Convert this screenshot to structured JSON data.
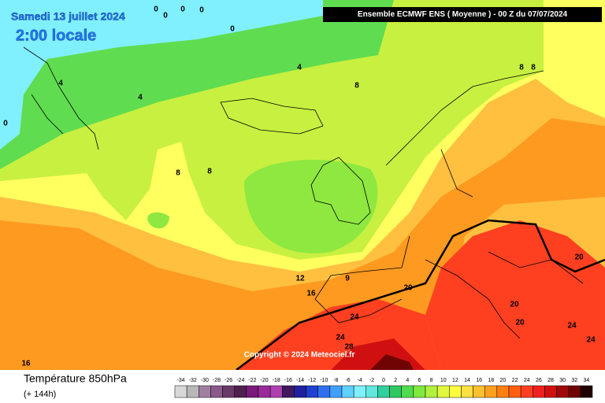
{
  "header": {
    "date": "Samedi 13 juillet 2024",
    "time": "2:00 locale",
    "model": "Ensemble ECMWF ENS  ( Moyenne )  -  00 Z du 07/07/2024"
  },
  "map": {
    "contour_labels": [
      0,
      0,
      0,
      0,
      0,
      0,
      4,
      4,
      4,
      8,
      8,
      8,
      8,
      8,
      12,
      9,
      16,
      20,
      20,
      20,
      20,
      24,
      24,
      28,
      24,
      24,
      16
    ],
    "copyright": "Copyright © 2024 Meteociel.fr"
  },
  "footer": {
    "parameter": "Température 850hPa",
    "lead": "(+ 144h)"
  },
  "colorbar": {
    "ticks": [
      -34,
      -32,
      -30,
      -28,
      -26,
      -24,
      -22,
      -20,
      -18,
      -16,
      -14,
      -12,
      -10,
      -8,
      -6,
      -4,
      -2,
      0,
      2,
      4,
      6,
      8,
      10,
      12,
      14,
      16,
      18,
      20,
      22,
      24,
      26,
      28,
      30,
      32,
      34
    ],
    "colors": [
      "#d8d8d8",
      "#b8b8b8",
      "#a080a0",
      "#8a5a8a",
      "#6a3a6a",
      "#502050",
      "#7a1a7a",
      "#9a2a9a",
      "#b040b0",
      "#401860",
      "#2020a0",
      "#2040d0",
      "#3070f0",
      "#40a0ff",
      "#60d0ff",
      "#80f0ff",
      "#60e8e0",
      "#30d0a0",
      "#30c860",
      "#50dc50",
      "#80e840",
      "#b0f040",
      "#e0f840",
      "#ffff40",
      "#ffe040",
      "#ffc030",
      "#ffa020",
      "#ff8010",
      "#ff6010",
      "#ff4020",
      "#f02020",
      "#d01010",
      "#a00808",
      "#700404",
      "#200000"
    ]
  }
}
